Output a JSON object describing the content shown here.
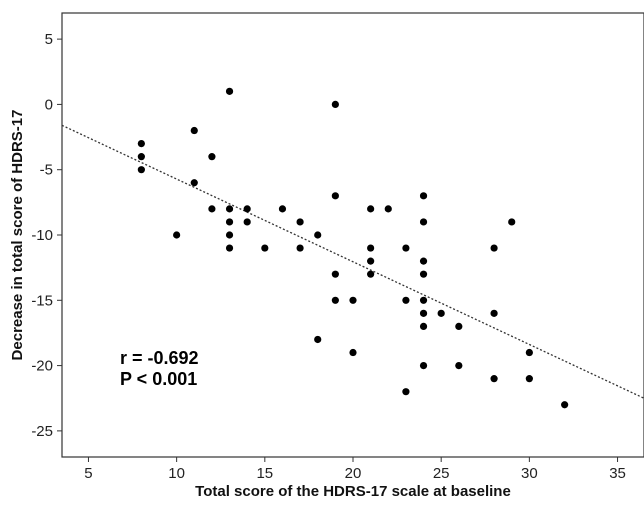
{
  "chart_data": {
    "type": "scatter",
    "title": "",
    "xlabel": "Total score of the HDRS-17 scale at baseline",
    "ylabel": "Decrease in total score of  HDRS-17",
    "xlim": [
      3.5,
      36.5
    ],
    "ylim": [
      -27,
      7
    ],
    "xticks": [
      5,
      10,
      15,
      20,
      25,
      30,
      35
    ],
    "yticks": [
      5,
      0,
      -5,
      -10,
      -15,
      -20,
      -25
    ],
    "grid": false,
    "points": [
      {
        "x": 8,
        "y": -3
      },
      {
        "x": 8,
        "y": -4
      },
      {
        "x": 8,
        "y": -5
      },
      {
        "x": 10,
        "y": -10
      },
      {
        "x": 11,
        "y": -2
      },
      {
        "x": 11,
        "y": -6
      },
      {
        "x": 12,
        "y": -4
      },
      {
        "x": 12,
        "y": -8
      },
      {
        "x": 13,
        "y": 1
      },
      {
        "x": 13,
        "y": -8
      },
      {
        "x": 13,
        "y": -9
      },
      {
        "x": 13,
        "y": -10
      },
      {
        "x": 13,
        "y": -11
      },
      {
        "x": 14,
        "y": -8
      },
      {
        "x": 14,
        "y": -9
      },
      {
        "x": 15,
        "y": -11
      },
      {
        "x": 16,
        "y": -8
      },
      {
        "x": 17,
        "y": -9
      },
      {
        "x": 17,
        "y": -11
      },
      {
        "x": 18,
        "y": -10
      },
      {
        "x": 18,
        "y": -18
      },
      {
        "x": 19,
        "y": 0
      },
      {
        "x": 19,
        "y": -7
      },
      {
        "x": 19,
        "y": -13
      },
      {
        "x": 19,
        "y": -15
      },
      {
        "x": 20,
        "y": -15
      },
      {
        "x": 20,
        "y": -19
      },
      {
        "x": 21,
        "y": -8
      },
      {
        "x": 21,
        "y": -11
      },
      {
        "x": 21,
        "y": -12
      },
      {
        "x": 21,
        "y": -13
      },
      {
        "x": 22,
        "y": -8
      },
      {
        "x": 23,
        "y": -11
      },
      {
        "x": 23,
        "y": -15
      },
      {
        "x": 23,
        "y": -22
      },
      {
        "x": 24,
        "y": -7
      },
      {
        "x": 24,
        "y": -9
      },
      {
        "x": 24,
        "y": -12
      },
      {
        "x": 24,
        "y": -13
      },
      {
        "x": 24,
        "y": -15
      },
      {
        "x": 24,
        "y": -16
      },
      {
        "x": 24,
        "y": -17
      },
      {
        "x": 24,
        "y": -20
      },
      {
        "x": 25,
        "y": -16
      },
      {
        "x": 26,
        "y": -17
      },
      {
        "x": 26,
        "y": -20
      },
      {
        "x": 28,
        "y": -11
      },
      {
        "x": 28,
        "y": -16
      },
      {
        "x": 28,
        "y": -21
      },
      {
        "x": 29,
        "y": -9
      },
      {
        "x": 30,
        "y": -19
      },
      {
        "x": 30,
        "y": -21
      },
      {
        "x": 32,
        "y": -23
      }
    ],
    "fit_line": {
      "style": "dotted",
      "from": {
        "x": 3.5,
        "y": -1.6
      },
      "to": {
        "x": 36.5,
        "y": -22.5
      }
    },
    "annotations": [
      "r = -0.692",
      "P < 0.001"
    ]
  },
  "colors": {
    "points": "#000000",
    "axis": "#333333",
    "fit_line": "#333333"
  }
}
